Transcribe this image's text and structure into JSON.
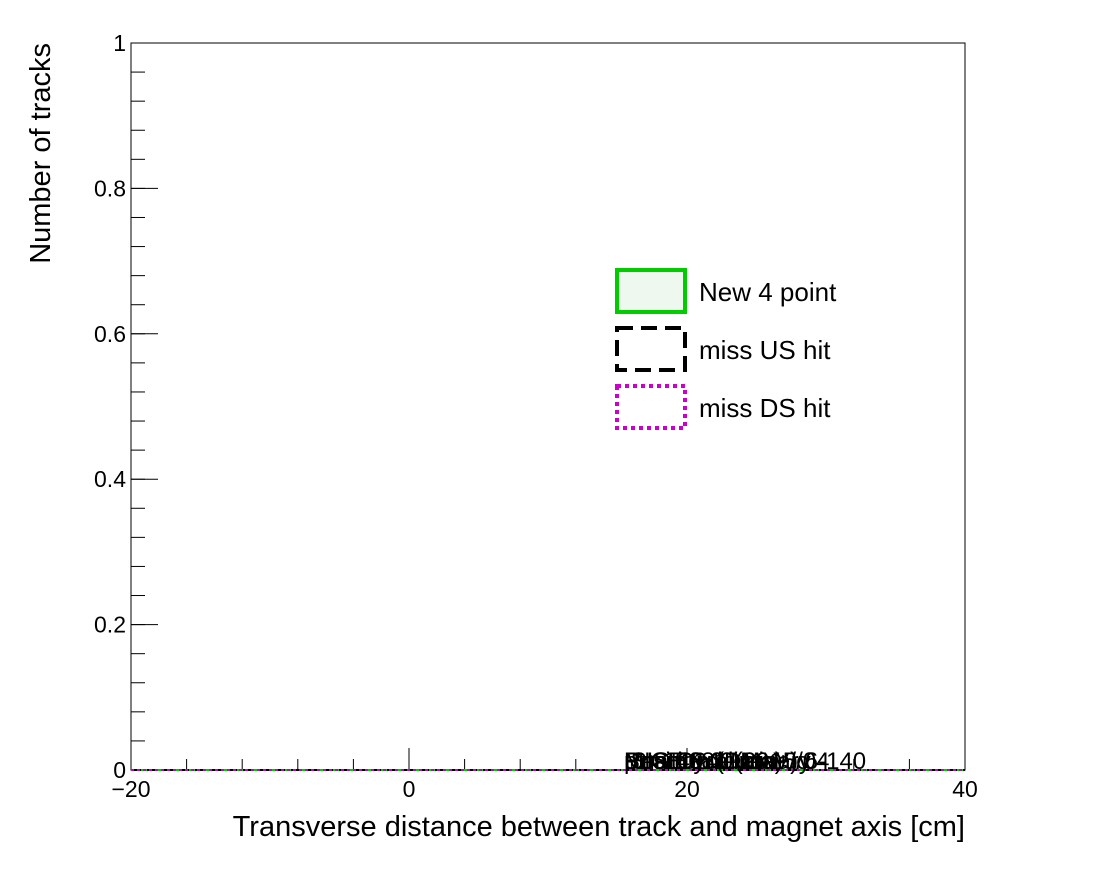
{
  "chart_data": {
    "type": "line",
    "title": "",
    "xlabel": "Transverse distance between track and magnet axis [cm]",
    "ylabel": "Number of tracks",
    "xlim": [
      -20,
      40
    ],
    "ylim": [
      0,
      1
    ],
    "x_ticks": [
      -20,
      0,
      20,
      40
    ],
    "x_tick_labels": [
      "−20",
      "0",
      "20",
      "40"
    ],
    "y_ticks": [
      0,
      0.2,
      0.4,
      0.6,
      0.8,
      1
    ],
    "y_tick_labels": [
      "0",
      "0.2",
      "0.4",
      "0.6",
      "0.8",
      "1"
    ],
    "grid": false,
    "legend_position": "right",
    "series": [
      {
        "name": "New 4 point",
        "color": "#00cc00",
        "line_style": "solid",
        "fill": "#eef8ee",
        "x": [
          -20,
          40
        ],
        "y": [
          0,
          0
        ]
      },
      {
        "name": "miss US hit",
        "color": "#000000",
        "line_style": "dashed",
        "x": [
          -20,
          40
        ],
        "y": [
          0,
          0
        ]
      },
      {
        "name": "miss DS hit",
        "color": "#cc00cc",
        "line_style": "dotted",
        "x": [
          -20,
          40
        ],
        "y": [
          0,
          0
        ]
      }
    ],
    "annotations": [
      "Position (Data)",
      "ISIS Cycle 2015/04",
      "Run 8681 (mu+) 6-140",
      "Beam 140 MeV/c",
      "MICE Preliminary",
      "pz>140.0 MeV"
    ]
  }
}
